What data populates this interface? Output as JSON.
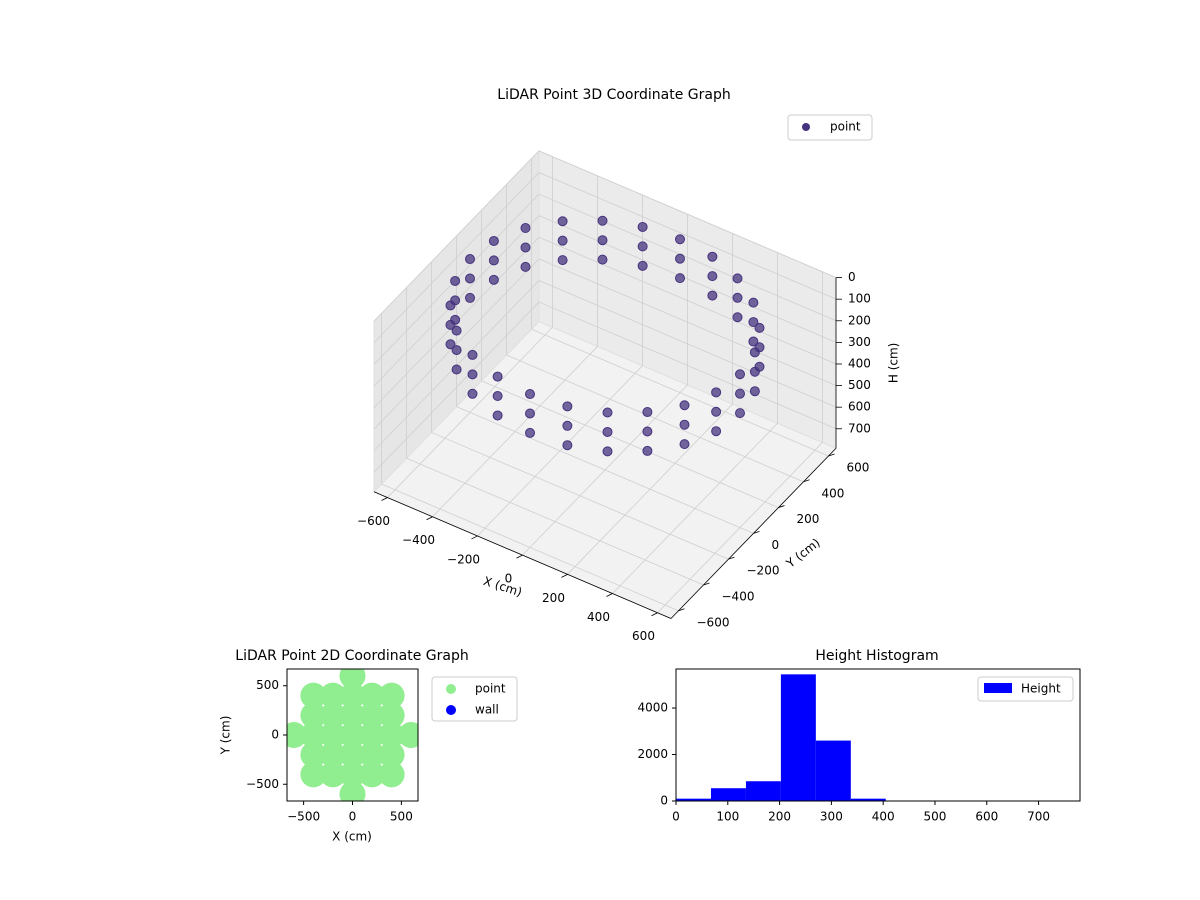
{
  "chart_data": [
    {
      "type": "scatter3d",
      "title": "LiDAR Point 3D Coordinate Graph",
      "x_label": "X (cm)",
      "y_label": "Y (cm)",
      "z_label": "H (cm)",
      "xlim": [
        -660,
        660
      ],
      "ylim": [
        -660,
        660
      ],
      "zlim": [
        0,
        790
      ],
      "z_inverted": true,
      "xticks": [
        {
          "value": -600,
          "label": "−600"
        },
        {
          "value": -400,
          "label": "−400"
        },
        {
          "value": -200,
          "label": "−200"
        },
        0,
        200,
        400,
        600
      ],
      "yticks": [
        {
          "value": -600,
          "label": "−600"
        },
        {
          "value": -400,
          "label": "−400"
        },
        {
          "value": -200,
          "label": "−200"
        },
        0,
        200,
        400,
        600
      ],
      "zticks": [
        0,
        100,
        200,
        300,
        400,
        500,
        600,
        700
      ],
      "grid": true,
      "legend": "upper right",
      "series": [
        {
          "name": "point",
          "color": "#46337e",
          "x": [
            600,
            580,
            520,
            424,
            300,
            155,
            0,
            -155,
            -300,
            -424,
            -520,
            -580,
            -600,
            -580,
            -520,
            -424,
            -300,
            -155,
            0,
            155,
            300,
            424,
            520,
            580,
            600,
            580,
            520,
            424,
            300,
            155,
            0,
            -155,
            -300,
            -424,
            -520,
            -580,
            -600,
            -580,
            -520,
            -424,
            -300,
            -155,
            0,
            155,
            300,
            424,
            520,
            580,
            600,
            580,
            520,
            424,
            300,
            155,
            0,
            -155,
            -300,
            -424,
            -520,
            -580,
            -600,
            -580,
            -520,
            -424,
            -300,
            -155,
            0,
            155,
            300,
            424,
            520,
            580
          ],
          "y": [
            0,
            155,
            300,
            424,
            520,
            580,
            600,
            580,
            520,
            424,
            300,
            155,
            0,
            -155,
            -300,
            -424,
            -520,
            -580,
            -600,
            -580,
            -520,
            -424,
            -300,
            -155,
            0,
            155,
            300,
            424,
            520,
            580,
            600,
            580,
            520,
            424,
            300,
            155,
            0,
            -155,
            -300,
            -424,
            -520,
            -580,
            -600,
            -580,
            -520,
            -424,
            -300,
            -155,
            0,
            155,
            300,
            424,
            520,
            580,
            600,
            580,
            520,
            424,
            300,
            155,
            0,
            -155,
            -300,
            -424,
            -520,
            -580,
            -600,
            -580,
            -520,
            -424,
            -300,
            -155
          ],
          "z": [
            80,
            80,
            80,
            80,
            80,
            80,
            80,
            80,
            80,
            80,
            80,
            80,
            80,
            80,
            80,
            80,
            80,
            80,
            80,
            80,
            80,
            80,
            80,
            80,
            170,
            170,
            170,
            170,
            170,
            170,
            170,
            170,
            170,
            170,
            170,
            170,
            170,
            170,
            170,
            170,
            170,
            170,
            170,
            170,
            170,
            170,
            170,
            170,
            260,
            260,
            260,
            260,
            260,
            260,
            260,
            260,
            260,
            260,
            260,
            260,
            260,
            260,
            260,
            260,
            260,
            260,
            260,
            260,
            260,
            260,
            260,
            260
          ]
        }
      ]
    },
    {
      "type": "scatter",
      "title": "LiDAR Point 2D Coordinate Graph",
      "x_label": "X (cm)",
      "y_label": "Y (cm)",
      "xlim": [
        -670,
        670
      ],
      "ylim": [
        -670,
        670
      ],
      "xticks": [
        {
          "value": -500,
          "label": "−500"
        },
        0,
        500
      ],
      "yticks": [
        {
          "value": -500,
          "label": "−500"
        },
        0,
        500
      ],
      "legend": "outside right",
      "series": [
        {
          "name": "point",
          "color": "#90ee90",
          "x": [
            0,
            0,
            0,
            0,
            0,
            0,
            0,
            -200,
            -200,
            -200,
            -200,
            -200,
            200,
            200,
            200,
            200,
            200,
            -400,
            -400,
            -400,
            -400,
            -400,
            400,
            400,
            400,
            400,
            400,
            -600,
            600
          ],
          "y": [
            -600,
            -400,
            -200,
            0,
            200,
            400,
            600,
            -400,
            -200,
            0,
            200,
            400,
            -400,
            -200,
            0,
            200,
            400,
            -400,
            -200,
            0,
            200,
            400,
            -400,
            -200,
            0,
            200,
            400,
            0,
            0
          ]
        },
        {
          "name": "wall",
          "color": "#0000ff",
          "x": [],
          "y": []
        }
      ]
    },
    {
      "type": "histogram",
      "title": "Height Histogram",
      "bins": [
        0,
        67.5,
        135,
        202.5,
        270,
        337.5,
        405,
        472.5,
        540,
        607.5,
        675,
        742.5
      ],
      "series": [
        {
          "name": "Height",
          "color": "#0000ff",
          "values": [
            100,
            550,
            850,
            5450,
            2600,
            100,
            3,
            3,
            3,
            3,
            3
          ]
        }
      ],
      "xlim": [
        0,
        780
      ],
      "ylim": [
        0,
        5680
      ],
      "xticks": [
        0,
        100,
        200,
        300,
        400,
        500,
        600,
        700
      ],
      "yticks": [
        0,
        2000,
        4000
      ],
      "legend": "upper right"
    }
  ]
}
